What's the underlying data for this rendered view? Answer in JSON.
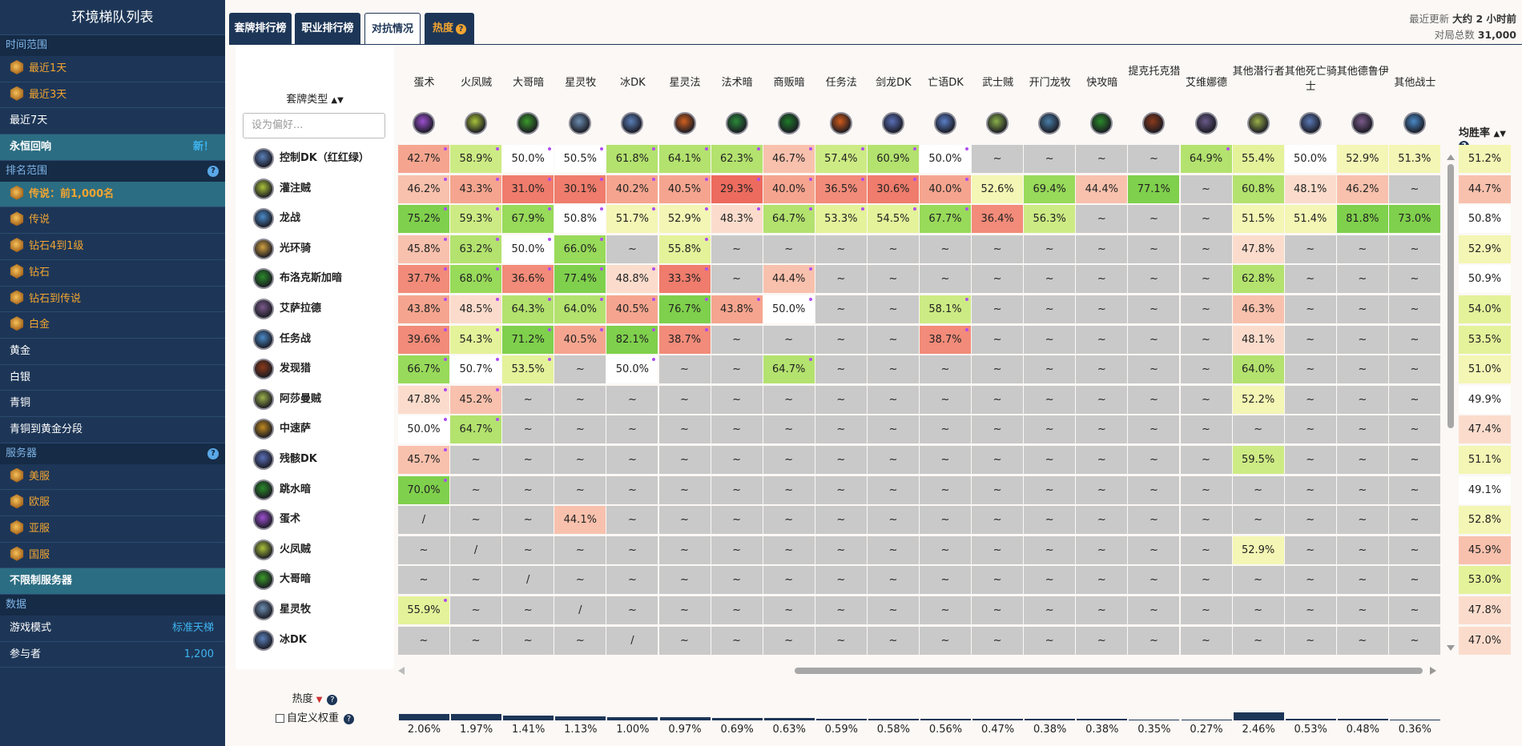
{
  "sidebar": {
    "title": "环境梯队列表",
    "sections": [
      {
        "label": "时间范围",
        "help": false,
        "items": [
          {
            "label": "最近1天",
            "gold": true
          },
          {
            "label": "最近3天",
            "gold": true
          },
          {
            "label": "最近7天"
          },
          {
            "label": "永恒回响",
            "selected": true,
            "badge": "新！"
          }
        ]
      },
      {
        "label": "排名范围",
        "help": true,
        "items": [
          {
            "label": "传说：前1,000名",
            "gold": true,
            "selected": true
          },
          {
            "label": "传说",
            "gold": true
          },
          {
            "label": "钻石4到1级",
            "gold": true
          },
          {
            "label": "钻石",
            "gold": true
          },
          {
            "label": "钻石到传说",
            "gold": true
          },
          {
            "label": "白金",
            "gold": true
          },
          {
            "label": "黄金"
          },
          {
            "label": "白银"
          },
          {
            "label": "青铜"
          },
          {
            "label": "青铜到黄金分段"
          }
        ]
      },
      {
        "label": "服务器",
        "help": true,
        "items": [
          {
            "label": "美服",
            "gold": true
          },
          {
            "label": "欧服",
            "gold": true
          },
          {
            "label": "亚服",
            "gold": true
          },
          {
            "label": "国服",
            "gold": true
          },
          {
            "label": "不限制服务器",
            "selected": true
          }
        ]
      },
      {
        "label": "数据",
        "help": false,
        "items": [
          {
            "label": "游戏模式",
            "badge": "标准天梯"
          },
          {
            "label": "参与者",
            "badge": "1,200"
          }
        ]
      }
    ]
  },
  "tabs": [
    {
      "label": "套牌排行榜"
    },
    {
      "label": "职业排行榜"
    },
    {
      "label": "对抗情况",
      "active": true
    },
    {
      "label": "热度",
      "hot": true
    }
  ],
  "update": {
    "label1": "最近更新",
    "value1": "大约 2 小时前",
    "label2": "对局总数",
    "value2": "31,000"
  },
  "deck_header": "套牌类型",
  "pref_placeholder": "设为偏好...",
  "winrate_header": "均胜率",
  "columns": [
    {
      "name": "蛋术",
      "color": "#9b4fd0"
    },
    {
      "name": "火凤贼",
      "color": "#a8c23a"
    },
    {
      "name": "大哥暗",
      "color": "#3a9a2a"
    },
    {
      "name": "星灵牧",
      "color": "#6b8caf"
    },
    {
      "name": "冰DK",
      "color": "#5a7fb8"
    },
    {
      "name": "星灵法",
      "color": "#d06020"
    },
    {
      "name": "法术暗",
      "color": "#2a8a3a"
    },
    {
      "name": "商贩暗",
      "color": "#1f7a2a"
    },
    {
      "name": "任务法",
      "color": "#d05a1a"
    },
    {
      "name": "剑龙DK",
      "color": "#5a6fb8"
    },
    {
      "name": "亡语DK",
      "color": "#5a7fc8"
    },
    {
      "name": "武士贼",
      "color": "#8ab04a"
    },
    {
      "name": "开门龙牧",
      "color": "#4a7fa8"
    },
    {
      "name": "快攻暗",
      "color": "#2a8a2a"
    },
    {
      "name": "提克托克猎",
      "color": "#8a3a1a"
    },
    {
      "name": "艾维娜德",
      "color": "#6a5a8a"
    },
    {
      "name": "其他潜行者",
      "color": "#9ab04a"
    },
    {
      "name": "其他死亡骑士",
      "color": "#5a7ab8"
    },
    {
      "name": "其他德鲁伊",
      "color": "#7a5a8a"
    },
    {
      "name": "其他战士",
      "color": "#4a8ac8"
    }
  ],
  "rows": [
    {
      "name": "控制DK（红红绿）",
      "color": "#5a7fb8",
      "winrate": "51.2%",
      "cells": [
        "42.7%",
        "58.9%",
        "50.0%",
        "50.5%",
        "61.8%",
        "64.1%",
        "62.3%",
        "46.7%",
        "57.4%",
        "60.9%",
        "50.0%",
        "~",
        "~",
        "~",
        "~",
        "64.9%",
        "55.4%",
        "50.0%",
        "52.9%",
        "51.3%"
      ]
    },
    {
      "name": "灌注贼",
      "color": "#a8c23a",
      "winrate": "44.7%",
      "cells": [
        "46.2%",
        "43.3%",
        "31.0%",
        "30.1%",
        "40.2%",
        "40.5%",
        "29.3%",
        "40.0%",
        "36.5%",
        "30.6%",
        "40.0%",
        "52.6%",
        "69.4%",
        "44.4%",
        "77.1%",
        "~",
        "60.8%",
        "48.1%",
        "46.2%",
        "~"
      ]
    },
    {
      "name": "龙战",
      "color": "#4a8ac8",
      "winrate": "50.8%",
      "cells": [
        "75.2%",
        "59.3%",
        "67.9%",
        "50.8%",
        "51.7%",
        "52.9%",
        "48.3%",
        "64.7%",
        "53.3%",
        "54.5%",
        "67.7%",
        "36.4%",
        "56.3%",
        "~",
        "~",
        "~",
        "51.5%",
        "51.4%",
        "81.8%",
        "73.0%"
      ]
    },
    {
      "name": "光环骑",
      "color": "#d0a040",
      "winrate": "52.9%",
      "cells": [
        "45.8%",
        "63.2%",
        "50.0%",
        "66.0%",
        "~",
        "55.8%",
        "~",
        "~",
        "~",
        "~",
        "~",
        "~",
        "~",
        "~",
        "~",
        "~",
        "47.8%",
        "~",
        "~",
        "~"
      ]
    },
    {
      "name": "布洛克斯加暗",
      "color": "#2a8a2a",
      "winrate": "50.9%",
      "cells": [
        "37.7%",
        "68.0%",
        "36.6%",
        "77.4%",
        "48.8%",
        "33.3%",
        "~",
        "44.4%",
        "~",
        "~",
        "~",
        "~",
        "~",
        "~",
        "~",
        "~",
        "62.8%",
        "~",
        "~",
        "~"
      ]
    },
    {
      "name": "艾萨拉德",
      "color": "#7a5a8a",
      "winrate": "54.0%",
      "cells": [
        "43.8%",
        "48.5%",
        "64.3%",
        "64.0%",
        "40.5%",
        "76.7%",
        "43.8%",
        "50.0%",
        "~",
        "~",
        "58.1%",
        "~",
        "~",
        "~",
        "~",
        "~",
        "46.3%",
        "~",
        "~",
        "~"
      ]
    },
    {
      "name": "任务战",
      "color": "#4a8ac8",
      "winrate": "53.5%",
      "cells": [
        "39.6%",
        "54.3%",
        "71.2%",
        "40.5%",
        "82.1%",
        "38.7%",
        "~",
        "~",
        "~",
        "~",
        "38.7%",
        "~",
        "~",
        "~",
        "~",
        "~",
        "48.1%",
        "~",
        "~",
        "~"
      ]
    },
    {
      "name": "发现猎",
      "color": "#8a3a1a",
      "winrate": "51.0%",
      "cells": [
        "66.7%",
        "50.7%",
        "53.5%",
        "~",
        "50.0%",
        "~",
        "~",
        "64.7%",
        "~",
        "~",
        "~",
        "~",
        "~",
        "~",
        "~",
        "~",
        "64.0%",
        "~",
        "~",
        "~"
      ]
    },
    {
      "name": "阿莎曼贼",
      "color": "#9ab04a",
      "winrate": "49.9%",
      "cells": [
        "47.8%",
        "45.2%",
        "~",
        "~",
        "~",
        "~",
        "~",
        "~",
        "~",
        "~",
        "~",
        "~",
        "~",
        "~",
        "~",
        "~",
        "52.2%",
        "~",
        "~",
        "~"
      ]
    },
    {
      "name": "中速萨",
      "color": "#c08a20",
      "winrate": "47.4%",
      "cells": [
        "50.0%",
        "64.7%",
        "~",
        "~",
        "~",
        "~",
        "~",
        "~",
        "~",
        "~",
        "~",
        "~",
        "~",
        "~",
        "~",
        "~",
        "~",
        "~",
        "~",
        "~"
      ]
    },
    {
      "name": "残骸DK",
      "color": "#5a6fb8",
      "winrate": "51.1%",
      "cells": [
        "45.7%",
        "~",
        "~",
        "~",
        "~",
        "~",
        "~",
        "~",
        "~",
        "~",
        "~",
        "~",
        "~",
        "~",
        "~",
        "~",
        "59.5%",
        "~",
        "~",
        "~"
      ]
    },
    {
      "name": "跳水暗",
      "color": "#2a8a2a",
      "winrate": "49.1%",
      "cells": [
        "70.0%",
        "~",
        "~",
        "~",
        "~",
        "~",
        "~",
        "~",
        "~",
        "~",
        "~",
        "~",
        "~",
        "~",
        "~",
        "~",
        "~",
        "~",
        "~",
        "~"
      ]
    },
    {
      "name": "蛋术",
      "color": "#9b4fd0",
      "winrate": "52.8%",
      "cells": [
        "/",
        "~",
        "~",
        "44.1%",
        "~",
        "~",
        "~",
        "~",
        "~",
        "~",
        "~",
        "~",
        "~",
        "~",
        "~",
        "~",
        "~",
        "~",
        "~",
        "~"
      ]
    },
    {
      "name": "火凤贼",
      "color": "#a8c23a",
      "winrate": "45.9%",
      "cells": [
        "~",
        "/",
        "~",
        "~",
        "~",
        "~",
        "~",
        "~",
        "~",
        "~",
        "~",
        "~",
        "~",
        "~",
        "~",
        "~",
        "52.9%",
        "~",
        "~",
        "~"
      ]
    },
    {
      "name": "大哥暗",
      "color": "#3a9a2a",
      "winrate": "53.0%",
      "cells": [
        "~",
        "~",
        "/",
        "~",
        "~",
        "~",
        "~",
        "~",
        "~",
        "~",
        "~",
        "~",
        "~",
        "~",
        "~",
        "~",
        "~",
        "~",
        "~",
        "~"
      ]
    },
    {
      "name": "星灵牧",
      "color": "#6b8caf",
      "winrate": "47.8%",
      "cells": [
        "55.9%",
        "~",
        "~",
        "/",
        "~",
        "~",
        "~",
        "~",
        "~",
        "~",
        "~",
        "~",
        "~",
        "~",
        "~",
        "~",
        "~",
        "~",
        "~",
        "~"
      ]
    },
    {
      "name": "冰DK",
      "color": "#5a7fb8",
      "winrate": "47.0%",
      "cells": [
        "~",
        "~",
        "~",
        "~",
        "/",
        "~",
        "~",
        "~",
        "~",
        "~",
        "~",
        "~",
        "~",
        "~",
        "~",
        "~",
        "~",
        "~",
        "~",
        "~"
      ]
    }
  ],
  "popularity": {
    "label": "热度",
    "custom_label": "自定义权重",
    "values": [
      "2.06%",
      "1.97%",
      "1.41%",
      "1.13%",
      "1.00%",
      "0.97%",
      "0.69%",
      "0.63%",
      "0.59%",
      "0.58%",
      "0.56%",
      "0.47%",
      "0.38%",
      "0.38%",
      "0.35%",
      "0.27%",
      "2.46%",
      "0.53%",
      "0.48%",
      "0.36%"
    ],
    "numbers": [
      2.06,
      1.97,
      1.41,
      1.13,
      1.0,
      0.97,
      0.69,
      0.63,
      0.59,
      0.58,
      0.56,
      0.47,
      0.38,
      0.38,
      0.35,
      0.27,
      2.46,
      0.53,
      0.48,
      0.36
    ]
  },
  "colors": {
    "navy": "#1d3657",
    "gold": "#f3a531",
    "teal": "#2b6d82",
    "empty": "#c9c9c9"
  }
}
